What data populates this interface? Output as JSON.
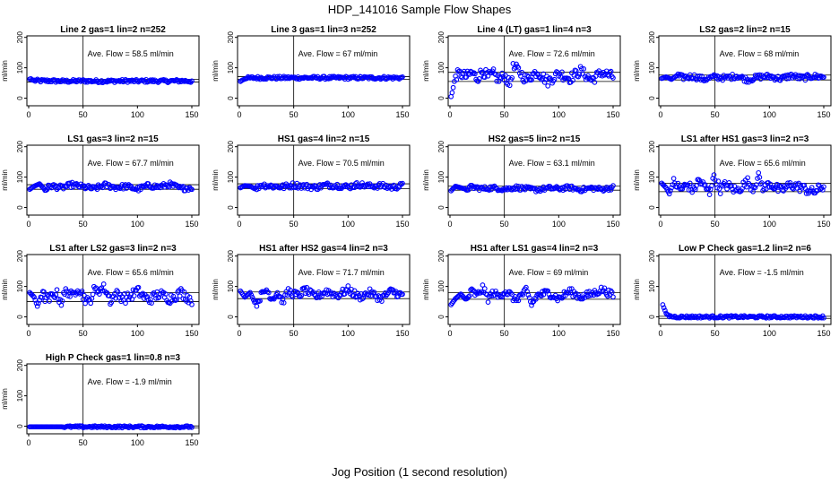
{
  "figure": {
    "title": "HDP_141016  Sample Flow Shapes",
    "xlabel": "Jog Position (1 second resolution)"
  },
  "colors": {
    "points": "#0000ff",
    "axes": "#000000",
    "background": "#ffffff"
  },
  "chart_data": [
    {
      "type": "scatter",
      "title": "Line 2 gas=1 lin=2 n=252",
      "ylabel": "ml/min",
      "xlim": [
        0,
        150
      ],
      "ylim": [
        0,
        200
      ],
      "xticks": [
        0,
        50,
        100,
        150
      ],
      "yticks": [
        0,
        100,
        200
      ],
      "vline": 50,
      "annotation": "Ave. Flow =  58.5  ml/min",
      "ave_flow": 58.5,
      "band": [
        53,
        62
      ],
      "points": [
        [
          1,
          63
        ],
        [
          2,
          64
        ],
        [
          3,
          60
        ],
        [
          5,
          58
        ],
        [
          10,
          57
        ],
        [
          20,
          57
        ],
        [
          30,
          56
        ],
        [
          40,
          56
        ],
        [
          50,
          57
        ],
        [
          60,
          56
        ],
        [
          75,
          56
        ],
        [
          90,
          57
        ],
        [
          100,
          56
        ],
        [
          110,
          57
        ],
        [
          125,
          56
        ],
        [
          140,
          57
        ],
        [
          150,
          56
        ]
      ]
    },
    {
      "type": "scatter",
      "title": "Line 3 gas=1 lin=3 n=252",
      "ylabel": "ml/min",
      "xlim": [
        0,
        150
      ],
      "ylim": [
        0,
        200
      ],
      "xticks": [
        0,
        50,
        100,
        150
      ],
      "yticks": [
        0,
        100,
        200
      ],
      "vline": 50,
      "annotation": "Ave. Flow =  67  ml/min",
      "ave_flow": 67,
      "band": [
        62,
        71
      ],
      "points": [
        [
          1,
          55
        ],
        [
          3,
          60
        ],
        [
          5,
          63
        ],
        [
          8,
          66
        ],
        [
          15,
          67
        ],
        [
          30,
          67
        ],
        [
          50,
          67
        ],
        [
          70,
          67
        ],
        [
          90,
          67
        ],
        [
          110,
          67
        ],
        [
          130,
          67
        ],
        [
          150,
          67
        ]
      ]
    },
    {
      "type": "scatter",
      "title": "Line 4 (LT) gas=1 lin=4 n=3",
      "ylabel": "ml/min",
      "xlim": [
        0,
        150
      ],
      "ylim": [
        0,
        200
      ],
      "xticks": [
        0,
        50,
        100,
        150
      ],
      "yticks": [
        0,
        100,
        200
      ],
      "vline": 50,
      "annotation": "Ave. Flow =  72.6  ml/min",
      "ave_flow": 72.6,
      "band": [
        55,
        85
      ],
      "points": [
        [
          1,
          5
        ],
        [
          2,
          18
        ],
        [
          3,
          35
        ],
        [
          5,
          75
        ],
        [
          10,
          80
        ],
        [
          15,
          70
        ],
        [
          20,
          85
        ],
        [
          25,
          65
        ],
        [
          30,
          90
        ],
        [
          35,
          70
        ],
        [
          40,
          80
        ],
        [
          45,
          60
        ],
        [
          50,
          75
        ],
        [
          55,
          45
        ],
        [
          58,
          100
        ],
        [
          62,
          95
        ],
        [
          70,
          60
        ],
        [
          80,
          88
        ],
        [
          90,
          55
        ],
        [
          100,
          82
        ],
        [
          110,
          65
        ],
        [
          120,
          90
        ],
        [
          130,
          60
        ],
        [
          140,
          85
        ],
        [
          150,
          70
        ]
      ]
    },
    {
      "type": "scatter",
      "title": "LS2 gas=2 lin=2 n=15",
      "ylabel": "ml/min",
      "xlim": [
        0,
        150
      ],
      "ylim": [
        0,
        200
      ],
      "xticks": [
        0,
        50,
        100,
        150
      ],
      "yticks": [
        0,
        100,
        200
      ],
      "vline": 50,
      "annotation": "Ave. Flow =  68  ml/min",
      "ave_flow": 68,
      "band": [
        60,
        76
      ],
      "points": [
        [
          1,
          65
        ],
        [
          5,
          70
        ],
        [
          10,
          62
        ],
        [
          15,
          75
        ],
        [
          20,
          68
        ],
        [
          30,
          72
        ],
        [
          40,
          62
        ],
        [
          50,
          70
        ],
        [
          60,
          66
        ],
        [
          70,
          74
        ],
        [
          80,
          60
        ],
        [
          90,
          70
        ],
        [
          100,
          72
        ],
        [
          110,
          64
        ],
        [
          120,
          74
        ],
        [
          130,
          66
        ],
        [
          140,
          72
        ],
        [
          150,
          70
        ]
      ]
    },
    {
      "type": "scatter",
      "title": "LS1 gas=3 lin=2 n=15",
      "ylabel": "ml/min",
      "xlim": [
        0,
        150
      ],
      "ylim": [
        0,
        200
      ],
      "xticks": [
        0,
        50,
        100,
        150
      ],
      "yticks": [
        0,
        100,
        200
      ],
      "vline": 50,
      "annotation": "Ave. Flow =  67.7  ml/min",
      "ave_flow": 67.7,
      "band": [
        60,
        75
      ],
      "points": [
        [
          1,
          60
        ],
        [
          5,
          70
        ],
        [
          10,
          78
        ],
        [
          15,
          58
        ],
        [
          20,
          72
        ],
        [
          30,
          65
        ],
        [
          40,
          75
        ],
        [
          50,
          68
        ],
        [
          60,
          62
        ],
        [
          70,
          74
        ],
        [
          80,
          66
        ],
        [
          90,
          70
        ],
        [
          100,
          60
        ],
        [
          110,
          72
        ],
        [
          120,
          68
        ],
        [
          130,
          76
        ],
        [
          140,
          62
        ],
        [
          150,
          66
        ]
      ]
    },
    {
      "type": "scatter",
      "title": "HS1 gas=4 lin=2 n=15",
      "ylabel": "ml/min",
      "xlim": [
        0,
        150
      ],
      "ylim": [
        0,
        200
      ],
      "xticks": [
        0,
        50,
        100,
        150
      ],
      "yticks": [
        0,
        100,
        200
      ],
      "vline": 50,
      "annotation": "Ave. Flow =  70.5  ml/min",
      "ave_flow": 70.5,
      "band": [
        62,
        78
      ],
      "points": [
        [
          1,
          65
        ],
        [
          5,
          72
        ],
        [
          10,
          70
        ],
        [
          15,
          60
        ],
        [
          20,
          75
        ],
        [
          30,
          70
        ],
        [
          40,
          68
        ],
        [
          50,
          74
        ],
        [
          60,
          70
        ],
        [
          70,
          66
        ],
        [
          80,
          74
        ],
        [
          90,
          72
        ],
        [
          100,
          68
        ],
        [
          110,
          76
        ],
        [
          120,
          70
        ],
        [
          130,
          72
        ],
        [
          140,
          66
        ],
        [
          150,
          72
        ]
      ]
    },
    {
      "type": "scatter",
      "title": "HS2 gas=5 lin=2 n=15",
      "ylabel": "ml/min",
      "xlim": [
        0,
        150
      ],
      "ylim": [
        0,
        200
      ],
      "xticks": [
        0,
        50,
        100,
        150
      ],
      "yticks": [
        0,
        100,
        200
      ],
      "vline": 50,
      "annotation": "Ave. Flow =  63.1  ml/min",
      "ave_flow": 63.1,
      "band": [
        57,
        70
      ],
      "points": [
        [
          1,
          55
        ],
        [
          5,
          70
        ],
        [
          10,
          65
        ],
        [
          15,
          60
        ],
        [
          20,
          68
        ],
        [
          30,
          62
        ],
        [
          40,
          65
        ],
        [
          50,
          60
        ],
        [
          60,
          66
        ],
        [
          70,
          62
        ],
        [
          80,
          58
        ],
        [
          90,
          64
        ],
        [
          100,
          62
        ],
        [
          110,
          66
        ],
        [
          120,
          58
        ],
        [
          130,
          64
        ],
        [
          140,
          60
        ],
        [
          150,
          66
        ]
      ]
    },
    {
      "type": "scatter",
      "title": "LS1 after HS1 gas=3 lin=2 n=3",
      "ylabel": "ml/min",
      "xlim": [
        0,
        150
      ],
      "ylim": [
        0,
        200
      ],
      "xticks": [
        0,
        50,
        100,
        150
      ],
      "yticks": [
        0,
        100,
        200
      ],
      "vline": 50,
      "annotation": "Ave. Flow =  65.6  ml/min",
      "ave_flow": 65.6,
      "band": [
        52,
        80
      ],
      "points": [
        [
          1,
          80
        ],
        [
          5,
          65
        ],
        [
          8,
          45
        ],
        [
          12,
          85
        ],
        [
          18,
          60
        ],
        [
          25,
          75
        ],
        [
          30,
          55
        ],
        [
          35,
          90
        ],
        [
          40,
          70
        ],
        [
          45,
          50
        ],
        [
          48,
          100
        ],
        [
          52,
          80
        ],
        [
          55,
          60
        ],
        [
          60,
          75
        ],
        [
          70,
          55
        ],
        [
          80,
          85
        ],
        [
          85,
          65
        ],
        [
          90,
          100
        ],
        [
          95,
          60
        ],
        [
          100,
          80
        ],
        [
          110,
          55
        ],
        [
          120,
          75
        ],
        [
          130,
          65
        ],
        [
          140,
          50
        ],
        [
          150,
          70
        ]
      ]
    },
    {
      "type": "scatter",
      "title": "LS1 after LS2 gas=3 lin=2 n=3",
      "ylabel": "ml/min",
      "xlim": [
        0,
        150
      ],
      "ylim": [
        0,
        200
      ],
      "xticks": [
        0,
        50,
        100,
        150
      ],
      "yticks": [
        0,
        100,
        200
      ],
      "vline": 50,
      "annotation": "Ave. Flow =  65.6  ml/min",
      "ave_flow": 65.6,
      "band": [
        50,
        80
      ],
      "points": [
        [
          1,
          80
        ],
        [
          5,
          65
        ],
        [
          8,
          35
        ],
        [
          12,
          75
        ],
        [
          18,
          55
        ],
        [
          25,
          80
        ],
        [
          30,
          50
        ],
        [
          35,
          90
        ],
        [
          40,
          65
        ],
        [
          45,
          100
        ],
        [
          50,
          70
        ],
        [
          55,
          45
        ],
        [
          60,
          85
        ],
        [
          70,
          95
        ],
        [
          75,
          55
        ],
        [
          80,
          75
        ],
        [
          90,
          60
        ],
        [
          100,
          85
        ],
        [
          110,
          55
        ],
        [
          120,
          75
        ],
        [
          130,
          60
        ],
        [
          140,
          80
        ],
        [
          150,
          55
        ]
      ]
    },
    {
      "type": "scatter",
      "title": "HS1 after HS2 gas=4 lin=2 n=3",
      "ylabel": "ml/min",
      "xlim": [
        0,
        150
      ],
      "ylim": [
        0,
        200
      ],
      "xticks": [
        0,
        50,
        100,
        150
      ],
      "yticks": [
        0,
        100,
        200
      ],
      "vline": 50,
      "annotation": "Ave. Flow =  71.7  ml/min",
      "ave_flow": 71.7,
      "band": [
        60,
        82
      ],
      "points": [
        [
          1,
          85
        ],
        [
          5,
          65
        ],
        [
          10,
          80
        ],
        [
          15,
          40
        ],
        [
          20,
          70
        ],
        [
          25,
          90
        ],
        [
          30,
          60
        ],
        [
          35,
          80
        ],
        [
          40,
          50
        ],
        [
          45,
          85
        ],
        [
          50,
          75
        ],
        [
          55,
          70
        ],
        [
          60,
          90
        ],
        [
          70,
          65
        ],
        [
          80,
          85
        ],
        [
          90,
          70
        ],
        [
          100,
          90
        ],
        [
          110,
          65
        ],
        [
          120,
          80
        ],
        [
          130,
          60
        ],
        [
          140,
          85
        ],
        [
          150,
          70
        ]
      ]
    },
    {
      "type": "scatter",
      "title": "HS1 after LS1 gas=4 lin=2 n=3",
      "ylabel": "ml/min",
      "xlim": [
        0,
        150
      ],
      "ylim": [
        0,
        200
      ],
      "xticks": [
        0,
        50,
        100,
        150
      ],
      "yticks": [
        0,
        100,
        200
      ],
      "vline": 50,
      "annotation": "Ave. Flow =  69  ml/min",
      "ave_flow": 69,
      "band": [
        58,
        80
      ],
      "points": [
        [
          1,
          40
        ],
        [
          5,
          60
        ],
        [
          10,
          75
        ],
        [
          15,
          55
        ],
        [
          20,
          85
        ],
        [
          25,
          70
        ],
        [
          30,
          95
        ],
        [
          35,
          60
        ],
        [
          40,
          80
        ],
        [
          45,
          65
        ],
        [
          50,
          85
        ],
        [
          55,
          75
        ],
        [
          60,
          55
        ],
        [
          70,
          85
        ],
        [
          75,
          40
        ],
        [
          80,
          70
        ],
        [
          90,
          80
        ],
        [
          100,
          60
        ],
        [
          110,
          85
        ],
        [
          120,
          65
        ],
        [
          130,
          75
        ],
        [
          140,
          90
        ],
        [
          150,
          70
        ]
      ]
    },
    {
      "type": "scatter",
      "title": "Low P Check gas=1.2 lin=2 n=6",
      "ylabel": "ml/min",
      "xlim": [
        0,
        150
      ],
      "ylim": [
        0,
        200
      ],
      "xticks": [
        0,
        50,
        100,
        150
      ],
      "yticks": [
        0,
        100,
        200
      ],
      "vline": 50,
      "annotation": "Ave. Flow =  -1.5  ml/min",
      "ave_flow": -1.5,
      "band": [
        -5,
        2
      ],
      "points": [
        [
          2,
          40
        ],
        [
          3,
          30
        ],
        [
          5,
          12
        ],
        [
          7,
          4
        ],
        [
          10,
          1
        ],
        [
          15,
          0
        ],
        [
          25,
          0
        ],
        [
          40,
          0
        ],
        [
          60,
          0
        ],
        [
          80,
          0
        ],
        [
          100,
          0
        ],
        [
          120,
          0
        ],
        [
          140,
          0
        ],
        [
          150,
          0
        ]
      ]
    },
    {
      "type": "scatter",
      "title": "High P Check gas=1 lin=0.8 n=3",
      "ylabel": "ml/min",
      "xlim": [
        0,
        150
      ],
      "ylim": [
        0,
        200
      ],
      "xticks": [
        0,
        50,
        100,
        150
      ],
      "yticks": [
        0,
        100,
        200
      ],
      "vline": 50,
      "annotation": "Ave. Flow =  -1.9  ml/min",
      "ave_flow": -1.9,
      "band": [
        -5,
        1
      ],
      "points": [
        [
          1,
          -2
        ],
        [
          10,
          -2
        ],
        [
          20,
          -2
        ],
        [
          30,
          -2
        ],
        [
          50,
          -2
        ],
        [
          70,
          -2
        ],
        [
          90,
          -2
        ],
        [
          110,
          -2
        ],
        [
          130,
          -2
        ],
        [
          150,
          -2
        ]
      ]
    }
  ]
}
